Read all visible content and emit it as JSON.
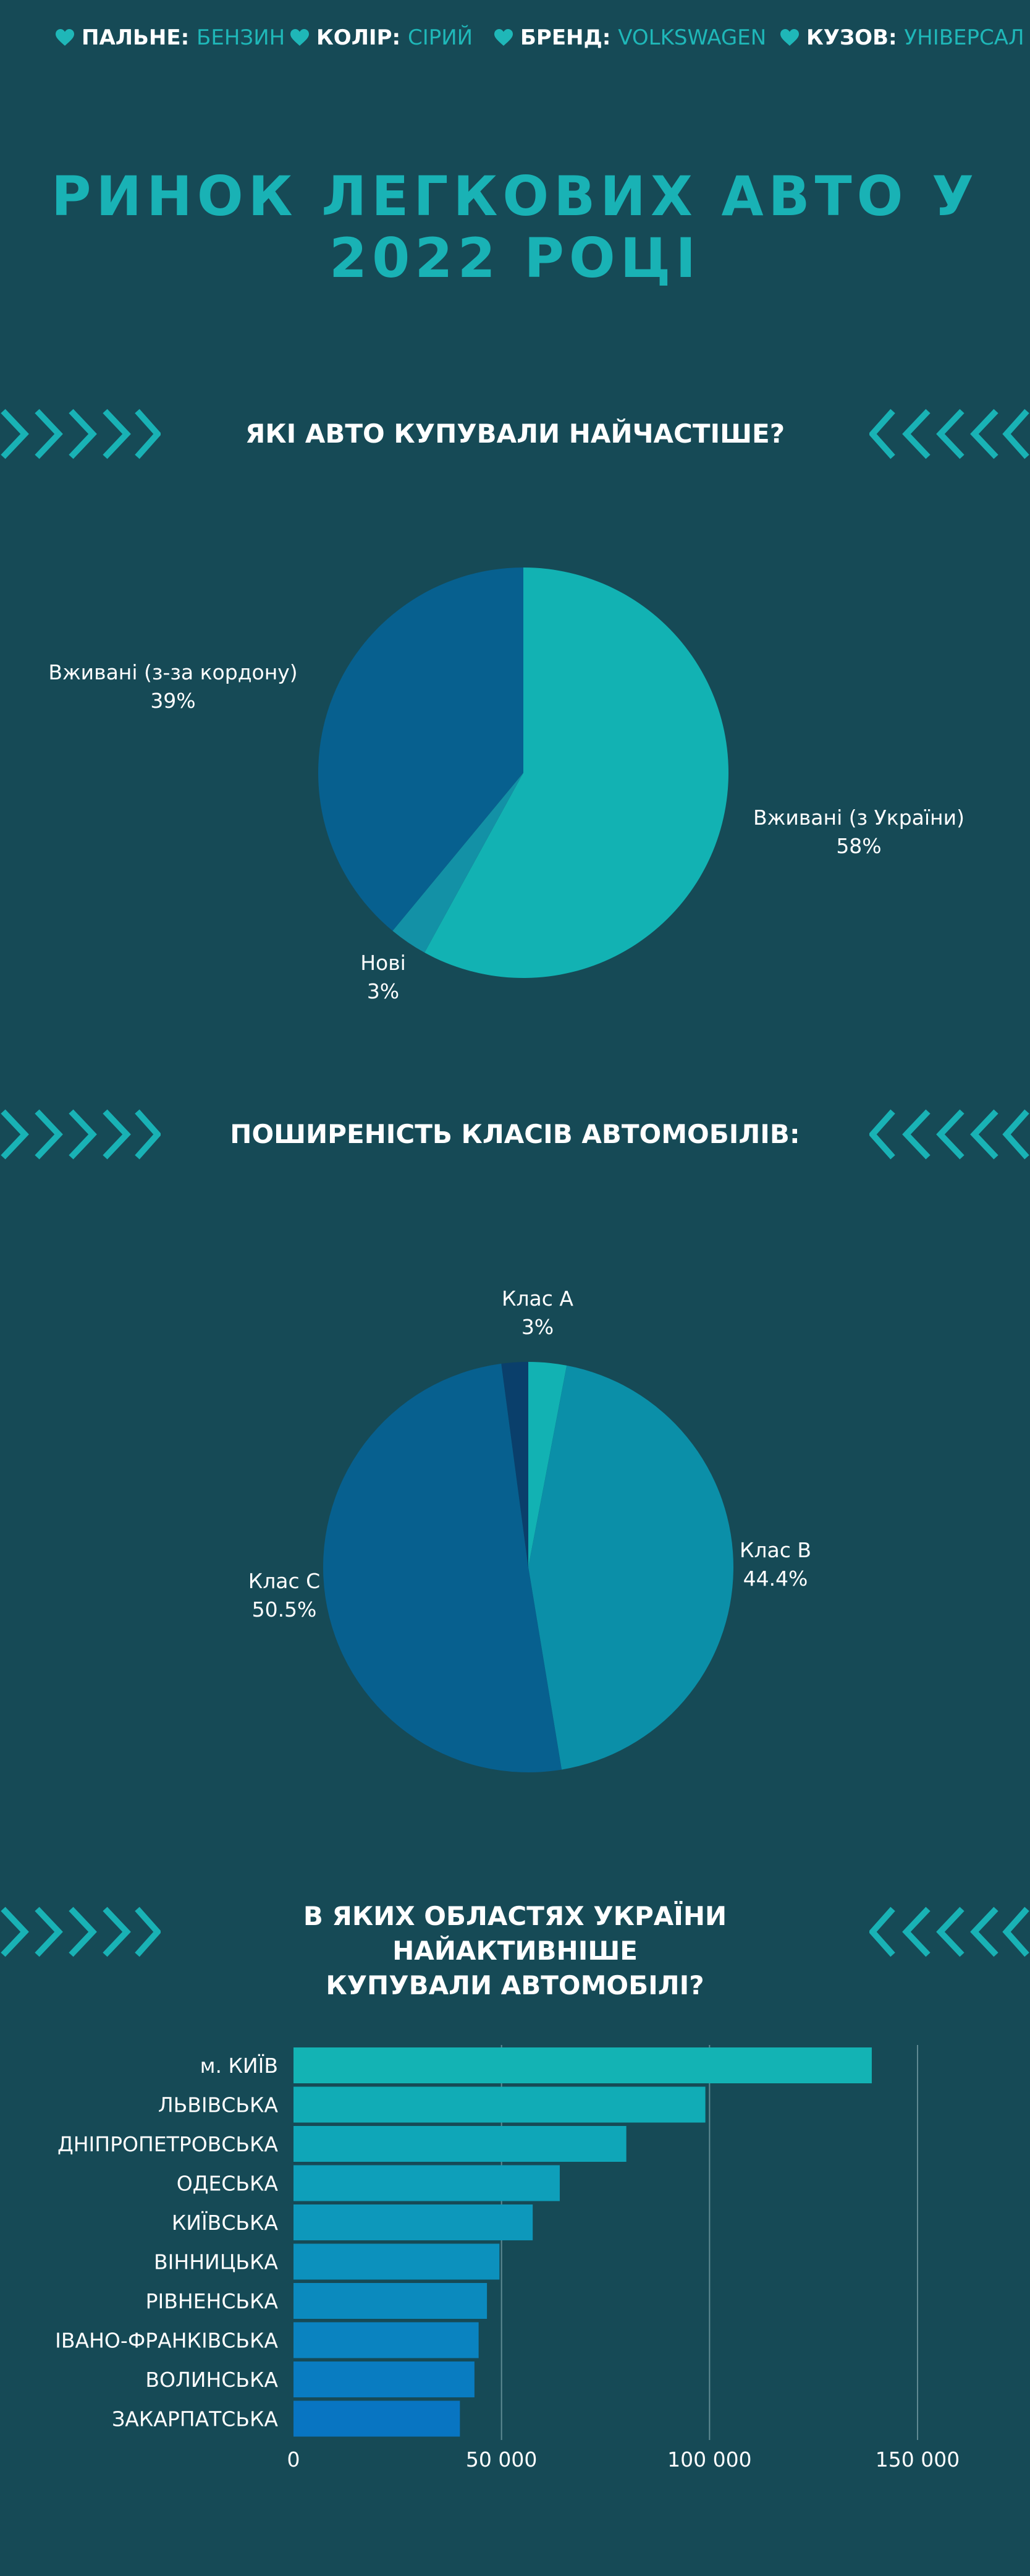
{
  "tags": [
    {
      "label": "ПАЛЬНЕ:",
      "value": "БЕНЗИН"
    },
    {
      "label": "КОЛІР:",
      "value": "СІРИЙ"
    },
    {
      "label": "БРЕНД:",
      "value": "VOLKSWAGEN"
    },
    {
      "label": "КУЗОВ:",
      "value": "УНІВЕРСАЛ"
    }
  ],
  "title_line1": "РИНОК ЛЕГКОВИХ АВТО У",
  "title_line2": "2022 РОЦІ",
  "sections": {
    "s1": "ЯКІ АВТО КУПУВАЛИ НАЙЧАСТІШЕ?",
    "s2": "ПОШИРЕНІСТЬ КЛАСІВ АВТОМОБІЛІВ:",
    "s3_line1": "В ЯКИХ ОБЛАСТЯХ УКРАЇНИ НАЙАКТИВНІШЕ",
    "s3_line2": "КУПУВАЛИ АВТОМОБІЛІ?"
  },
  "colors": {
    "background": "#164a56",
    "accent": "#1fb7b8",
    "chevron": "#19b2b5"
  },
  "chart_data": [
    {
      "type": "pie",
      "slices": [
        {
          "label": "Вживані (з України)",
          "value": 58,
          "value_label": "58%",
          "color": "#12b2b3"
        },
        {
          "label": "Нові",
          "value": 3,
          "value_label": "3%",
          "color": "#1391a6"
        },
        {
          "label": "Вживані (з-за кордону)",
          "value": 39,
          "value_label": "39%",
          "color": "#07608f"
        }
      ]
    },
    {
      "type": "pie",
      "slices": [
        {
          "label": "Клас A",
          "value": 3,
          "value_label": "3%",
          "color": "#12b2b3"
        },
        {
          "label": "Клас B",
          "value": 44.4,
          "value_label": "44.4%",
          "color": "#0b8fa8"
        },
        {
          "label": "Клас C",
          "value": 50.5,
          "value_label": "50.5%",
          "color": "#07608f"
        },
        {
          "label": "",
          "value": 2.1,
          "value_label": "",
          "color": "#0a3f6b"
        }
      ]
    },
    {
      "type": "bar",
      "orientation": "horizontal",
      "categories": [
        "м. КИЇВ",
        "ЛЬВІВСЬКА",
        "ДНІПРОПЕТРОВСЬКА",
        "ОДЕСЬКА",
        "КИЇВСЬКА",
        "ВІННИЦЬКА",
        "РІВНЕНСЬКА",
        "ІВАНО-ФРАНКІВСЬКА",
        "ВОЛИНСЬКА",
        "ЗАКАРПАТСЬКА"
      ],
      "values": [
        139000,
        99000,
        80000,
        64000,
        57500,
        49500,
        46500,
        44500,
        43500,
        40000
      ],
      "xlim": [
        0,
        150000
      ],
      "xticks": [
        0,
        50000,
        100000,
        150000
      ],
      "xtick_labels": [
        "0",
        "50 000",
        "100 000",
        "150 000"
      ],
      "grid": true,
      "colors": [
        "#13b3b4",
        "#11acb6",
        "#0fa6b8",
        "#0e9fba",
        "#0d98bb",
        "#0c91bd",
        "#0b8abe",
        "#0a83c0",
        "#097cc1",
        "#0875c2"
      ]
    }
  ]
}
